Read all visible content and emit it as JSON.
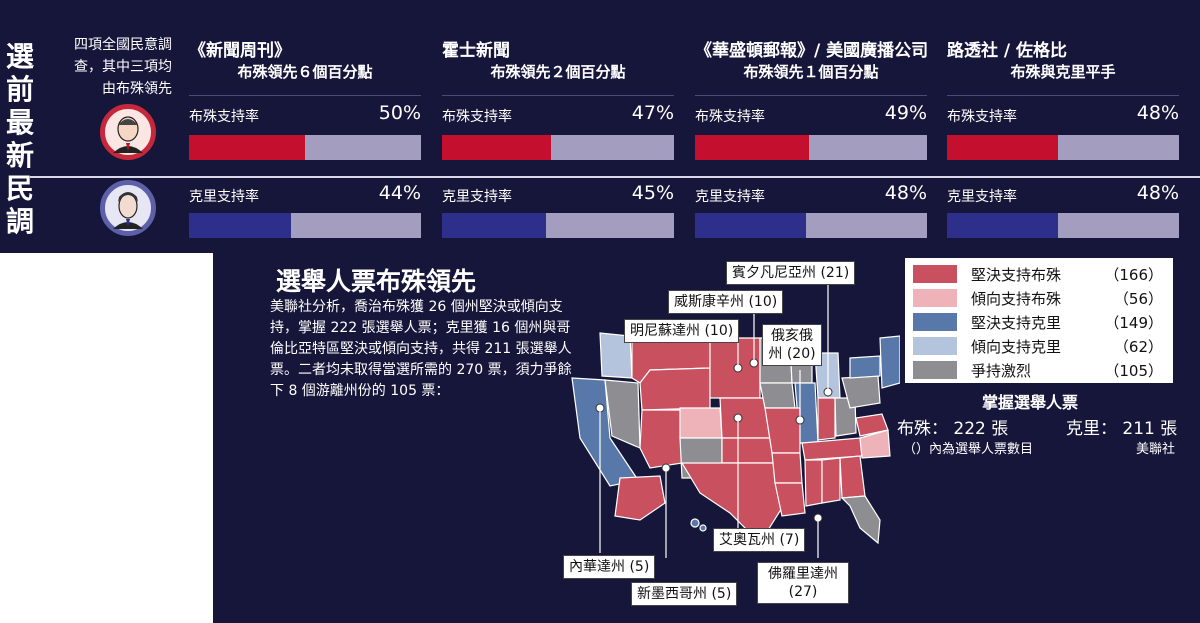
{
  "side_title": "選前最新民調",
  "side_note": "四項全國民意調查，其中三項均由布殊領先",
  "colors": {
    "background": "#16163a",
    "bush_bar": "#c4102e",
    "kerry_bar": "#2e2f8a",
    "bar_track": "#a39dbf",
    "solid_bush": "#c9505e",
    "lean_bush": "#edb3b8",
    "solid_kerry": "#5878aa",
    "lean_kerry": "#b4c4dc",
    "tossup": "#8e8e92"
  },
  "chart_data": [
    {
      "type": "bar",
      "polls": [
        {
          "name": "《新聞周刊》",
          "subtitle": "布殊領先６個百分點",
          "bush_label": "布殊支持率",
          "bush": 50,
          "bush_text": "50%",
          "kerry_label": "克里支持率",
          "kerry": 44,
          "kerry_text": "44%"
        },
        {
          "name": "霍士新聞",
          "subtitle": "布殊領先２個百分點",
          "bush_label": "布殊支持率",
          "bush": 47,
          "bush_text": "47%",
          "kerry_label": "克里支持率",
          "kerry": 45,
          "kerry_text": "45%"
        },
        {
          "name": "《華盛頓郵報》/ 美國廣播公司",
          "subtitle": "布殊領先１個百分點",
          "bush_label": "布殊支持率",
          "bush": 49,
          "bush_text": "49%",
          "kerry_label": "克里支持率",
          "kerry": 48,
          "kerry_text": "48%"
        },
        {
          "name": "路透社 / 佐格比",
          "subtitle": "布殊與克里平手",
          "bush_label": "布殊支持率",
          "bush": 48,
          "bush_text": "48%",
          "kerry_label": "克里支持率",
          "kerry": 48,
          "kerry_text": "48%"
        }
      ],
      "xlim": [
        0,
        100
      ]
    },
    {
      "type": "map",
      "title": "選舉人票布殊領先",
      "description": "美聯社分析，喬治布殊獲 26 個州堅決或傾向支持，掌握 222 張選舉人票；克里獲 16 個州與哥倫比亞特區堅決或傾向支持，共得 211 張選舉人票。二者均未取得當選所需的 270 票，須力爭餘下 8 個游離州份的 105 票：",
      "legend": [
        {
          "label": "堅決支持布殊",
          "count": "（166）",
          "color": "#c9505e"
        },
        {
          "label": "傾向支持布殊",
          "count": "（56）",
          "color": "#edb3b8"
        },
        {
          "label": "堅決支持克里",
          "count": "（149）",
          "color": "#5878aa"
        },
        {
          "label": "傾向支持克里",
          "count": "（62）",
          "color": "#b4c4dc"
        },
        {
          "label": "爭持激烈",
          "count": "（105）",
          "color": "#8e8e92"
        }
      ],
      "tossup_states": [
        {
          "label": "賓夕凡尼亞州 (21)"
        },
        {
          "label": "威斯康辛州 (10)"
        },
        {
          "label": "明尼蘇達州 (10)"
        },
        {
          "label": "俄亥俄州 (20)"
        },
        {
          "label": "艾奧瓦州 (7)"
        },
        {
          "label": "內華達州 (5)"
        },
        {
          "label": "新墨西哥州 (5)"
        },
        {
          "label": "佛羅里達州 (27)"
        }
      ],
      "electoral_summary": {
        "title": "掌握選舉人票",
        "bush": "布殊： 222 張",
        "kerry": "克里： 211 張",
        "note": "（）內為選舉人票數目",
        "source": "美聯社"
      }
    }
  ]
}
